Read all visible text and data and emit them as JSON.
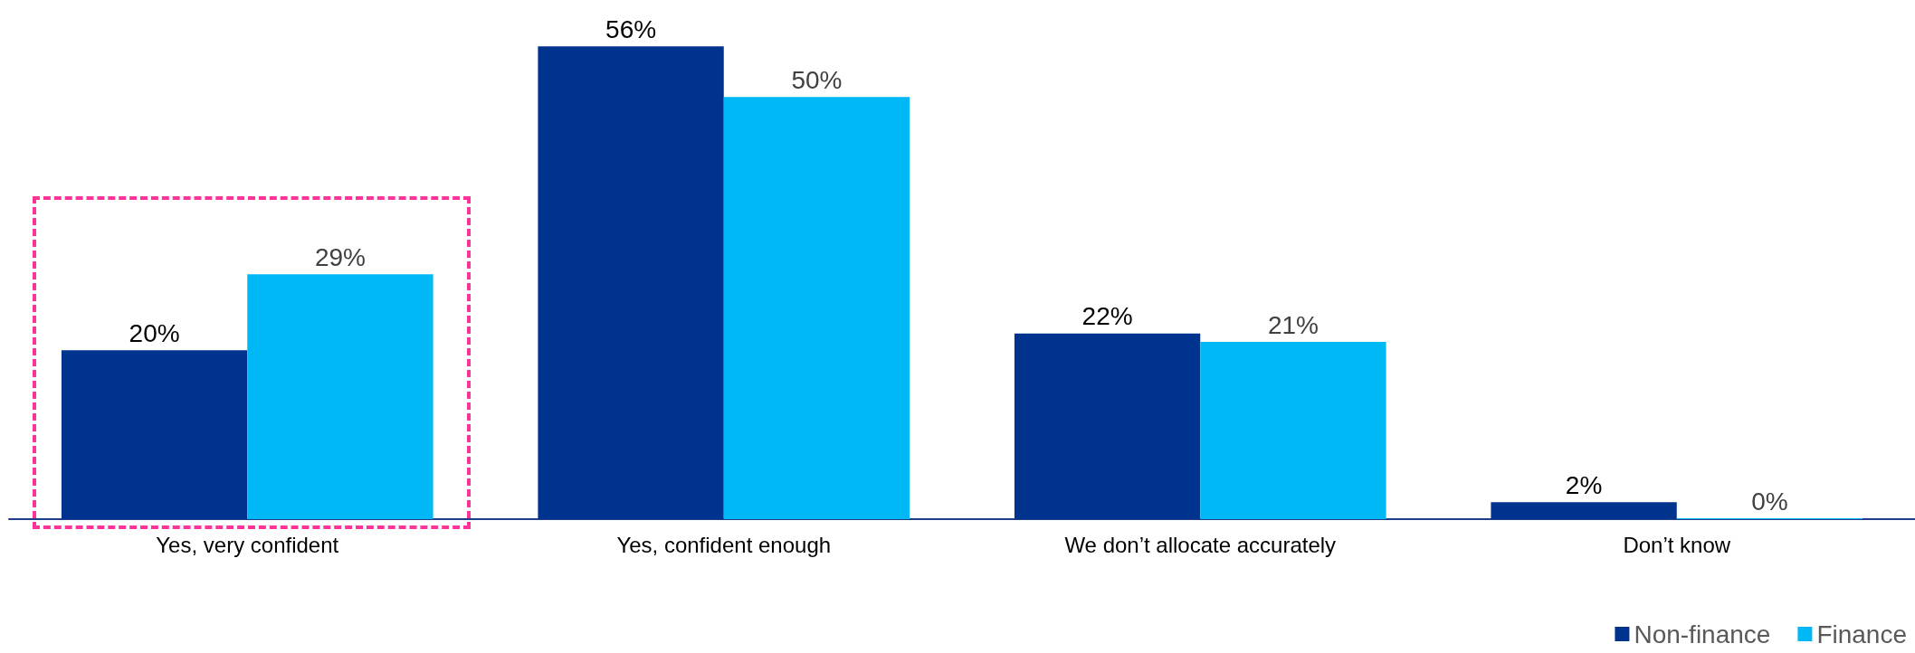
{
  "chart_data": {
    "type": "bar",
    "categories": [
      "Yes, very confident",
      "Yes, confident enough",
      "We don’t allocate accurately",
      "Don’t know"
    ],
    "series": [
      {
        "name": "Non-finance",
        "color": "#00338d",
        "values": [
          20,
          56,
          22,
          2
        ],
        "value_labels": [
          "20%",
          "56%",
          "22%",
          "2%"
        ]
      },
      {
        "name": "Finance",
        "color": "#00b8f5",
        "values": [
          29,
          50,
          21,
          0
        ],
        "value_labels": [
          "29%",
          "50%",
          "21%",
          "0%"
        ]
      }
    ],
    "legend": "bottom right",
    "grid": false
  }
}
